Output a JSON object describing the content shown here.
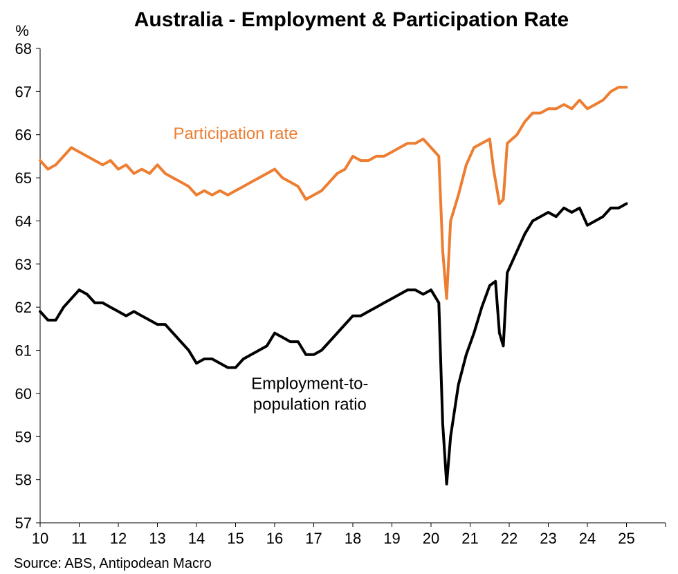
{
  "chart_data": {
    "type": "line",
    "title": "Australia - Employment & Participation Rate",
    "y_unit": "%",
    "ylim": [
      57,
      68
    ],
    "y_ticks": [
      57,
      58,
      59,
      60,
      61,
      62,
      63,
      64,
      65,
      66,
      67,
      68
    ],
    "x_range": [
      2010,
      2026
    ],
    "x_ticks": [
      {
        "x": 2010,
        "label": "10"
      },
      {
        "x": 2011,
        "label": "11"
      },
      {
        "x": 2012,
        "label": "12"
      },
      {
        "x": 2013,
        "label": "13"
      },
      {
        "x": 2014,
        "label": "14"
      },
      {
        "x": 2015,
        "label": "15"
      },
      {
        "x": 2016,
        "label": "16"
      },
      {
        "x": 2017,
        "label": "17"
      },
      {
        "x": 2018,
        "label": "18"
      },
      {
        "x": 2019,
        "label": "19"
      },
      {
        "x": 2020,
        "label": "20"
      },
      {
        "x": 2021,
        "label": "21"
      },
      {
        "x": 2022,
        "label": "22"
      },
      {
        "x": 2023,
        "label": "23"
      },
      {
        "x": 2024,
        "label": "24"
      },
      {
        "x": 2025,
        "label": "25"
      }
    ],
    "grid": false,
    "legend": "none (inline labels)",
    "series": [
      {
        "name": "Participation rate",
        "color": "#ED7D31",
        "points": [
          [
            2010.0,
            65.4
          ],
          [
            2010.2,
            65.2
          ],
          [
            2010.4,
            65.3
          ],
          [
            2010.6,
            65.5
          ],
          [
            2010.8,
            65.7
          ],
          [
            2011.0,
            65.6
          ],
          [
            2011.2,
            65.5
          ],
          [
            2011.4,
            65.4
          ],
          [
            2011.6,
            65.3
          ],
          [
            2011.8,
            65.4
          ],
          [
            2012.0,
            65.2
          ],
          [
            2012.2,
            65.3
          ],
          [
            2012.4,
            65.1
          ],
          [
            2012.6,
            65.2
          ],
          [
            2012.8,
            65.1
          ],
          [
            2013.0,
            65.3
          ],
          [
            2013.2,
            65.1
          ],
          [
            2013.4,
            65.0
          ],
          [
            2013.6,
            64.9
          ],
          [
            2013.8,
            64.8
          ],
          [
            2014.0,
            64.6
          ],
          [
            2014.2,
            64.7
          ],
          [
            2014.4,
            64.6
          ],
          [
            2014.6,
            64.7
          ],
          [
            2014.8,
            64.6
          ],
          [
            2015.0,
            64.7
          ],
          [
            2015.2,
            64.8
          ],
          [
            2015.4,
            64.9
          ],
          [
            2015.6,
            65.0
          ],
          [
            2015.8,
            65.1
          ],
          [
            2016.0,
            65.2
          ],
          [
            2016.2,
            65.0
          ],
          [
            2016.4,
            64.9
          ],
          [
            2016.6,
            64.8
          ],
          [
            2016.8,
            64.5
          ],
          [
            2017.0,
            64.6
          ],
          [
            2017.2,
            64.7
          ],
          [
            2017.4,
            64.9
          ],
          [
            2017.6,
            65.1
          ],
          [
            2017.8,
            65.2
          ],
          [
            2018.0,
            65.5
          ],
          [
            2018.2,
            65.4
          ],
          [
            2018.4,
            65.4
          ],
          [
            2018.6,
            65.5
          ],
          [
            2018.8,
            65.5
          ],
          [
            2019.0,
            65.6
          ],
          [
            2019.2,
            65.7
          ],
          [
            2019.4,
            65.8
          ],
          [
            2019.6,
            65.8
          ],
          [
            2019.8,
            65.9
          ],
          [
            2020.0,
            65.7
          ],
          [
            2020.2,
            65.5
          ],
          [
            2020.3,
            63.3
          ],
          [
            2020.4,
            62.2
          ],
          [
            2020.5,
            64.0
          ],
          [
            2020.7,
            64.6
          ],
          [
            2020.9,
            65.3
          ],
          [
            2021.1,
            65.7
          ],
          [
            2021.3,
            65.8
          ],
          [
            2021.5,
            65.9
          ],
          [
            2021.6,
            65.2
          ],
          [
            2021.75,
            64.4
          ],
          [
            2021.85,
            64.5
          ],
          [
            2021.95,
            65.8
          ],
          [
            2022.2,
            66.0
          ],
          [
            2022.4,
            66.3
          ],
          [
            2022.6,
            66.5
          ],
          [
            2022.8,
            66.5
          ],
          [
            2023.0,
            66.6
          ],
          [
            2023.2,
            66.6
          ],
          [
            2023.4,
            66.7
          ],
          [
            2023.6,
            66.6
          ],
          [
            2023.8,
            66.8
          ],
          [
            2024.0,
            66.6
          ],
          [
            2024.2,
            66.7
          ],
          [
            2024.4,
            66.8
          ],
          [
            2024.6,
            67.0
          ],
          [
            2024.8,
            67.1
          ],
          [
            2025.0,
            67.1
          ]
        ]
      },
      {
        "name": "Employment-to-population ratio",
        "color": "#000000",
        "points": [
          [
            2010.0,
            61.9
          ],
          [
            2010.2,
            61.7
          ],
          [
            2010.4,
            61.7
          ],
          [
            2010.6,
            62.0
          ],
          [
            2010.8,
            62.2
          ],
          [
            2011.0,
            62.4
          ],
          [
            2011.2,
            62.3
          ],
          [
            2011.4,
            62.1
          ],
          [
            2011.6,
            62.1
          ],
          [
            2011.8,
            62.0
          ],
          [
            2012.0,
            61.9
          ],
          [
            2012.2,
            61.8
          ],
          [
            2012.4,
            61.9
          ],
          [
            2012.6,
            61.8
          ],
          [
            2012.8,
            61.7
          ],
          [
            2013.0,
            61.6
          ],
          [
            2013.2,
            61.6
          ],
          [
            2013.4,
            61.4
          ],
          [
            2013.6,
            61.2
          ],
          [
            2013.8,
            61.0
          ],
          [
            2014.0,
            60.7
          ],
          [
            2014.2,
            60.8
          ],
          [
            2014.4,
            60.8
          ],
          [
            2014.6,
            60.7
          ],
          [
            2014.8,
            60.6
          ],
          [
            2015.0,
            60.6
          ],
          [
            2015.2,
            60.8
          ],
          [
            2015.4,
            60.9
          ],
          [
            2015.6,
            61.0
          ],
          [
            2015.8,
            61.1
          ],
          [
            2016.0,
            61.4
          ],
          [
            2016.2,
            61.3
          ],
          [
            2016.4,
            61.2
          ],
          [
            2016.6,
            61.2
          ],
          [
            2016.8,
            60.9
          ],
          [
            2017.0,
            60.9
          ],
          [
            2017.2,
            61.0
          ],
          [
            2017.4,
            61.2
          ],
          [
            2017.6,
            61.4
          ],
          [
            2017.8,
            61.6
          ],
          [
            2018.0,
            61.8
          ],
          [
            2018.2,
            61.8
          ],
          [
            2018.4,
            61.9
          ],
          [
            2018.6,
            62.0
          ],
          [
            2018.8,
            62.1
          ],
          [
            2019.0,
            62.2
          ],
          [
            2019.2,
            62.3
          ],
          [
            2019.4,
            62.4
          ],
          [
            2019.6,
            62.4
          ],
          [
            2019.8,
            62.3
          ],
          [
            2020.0,
            62.4
          ],
          [
            2020.2,
            62.1
          ],
          [
            2020.3,
            59.3
          ],
          [
            2020.4,
            57.9
          ],
          [
            2020.5,
            59.0
          ],
          [
            2020.7,
            60.2
          ],
          [
            2020.9,
            60.9
          ],
          [
            2021.1,
            61.4
          ],
          [
            2021.3,
            62.0
          ],
          [
            2021.5,
            62.5
          ],
          [
            2021.65,
            62.6
          ],
          [
            2021.75,
            61.4
          ],
          [
            2021.85,
            61.1
          ],
          [
            2021.95,
            62.8
          ],
          [
            2022.2,
            63.3
          ],
          [
            2022.4,
            63.7
          ],
          [
            2022.6,
            64.0
          ],
          [
            2022.8,
            64.1
          ],
          [
            2023.0,
            64.2
          ],
          [
            2023.2,
            64.1
          ],
          [
            2023.4,
            64.3
          ],
          [
            2023.6,
            64.2
          ],
          [
            2023.8,
            64.3
          ],
          [
            2024.0,
            63.9
          ],
          [
            2024.2,
            64.0
          ],
          [
            2024.4,
            64.1
          ],
          [
            2024.6,
            64.3
          ],
          [
            2024.8,
            64.3
          ],
          [
            2025.0,
            64.4
          ]
        ]
      }
    ],
    "annotations": [
      {
        "series": "Participation rate",
        "lines": [
          "Participation rate"
        ],
        "at": [
          2015.0,
          65.9
        ]
      },
      {
        "series": "Employment-to-population ratio",
        "lines": [
          "Employment-to-",
          "population ratio"
        ],
        "at": [
          2016.9,
          60.1
        ]
      }
    ],
    "source": "Source: ABS, Antipodean Macro"
  }
}
